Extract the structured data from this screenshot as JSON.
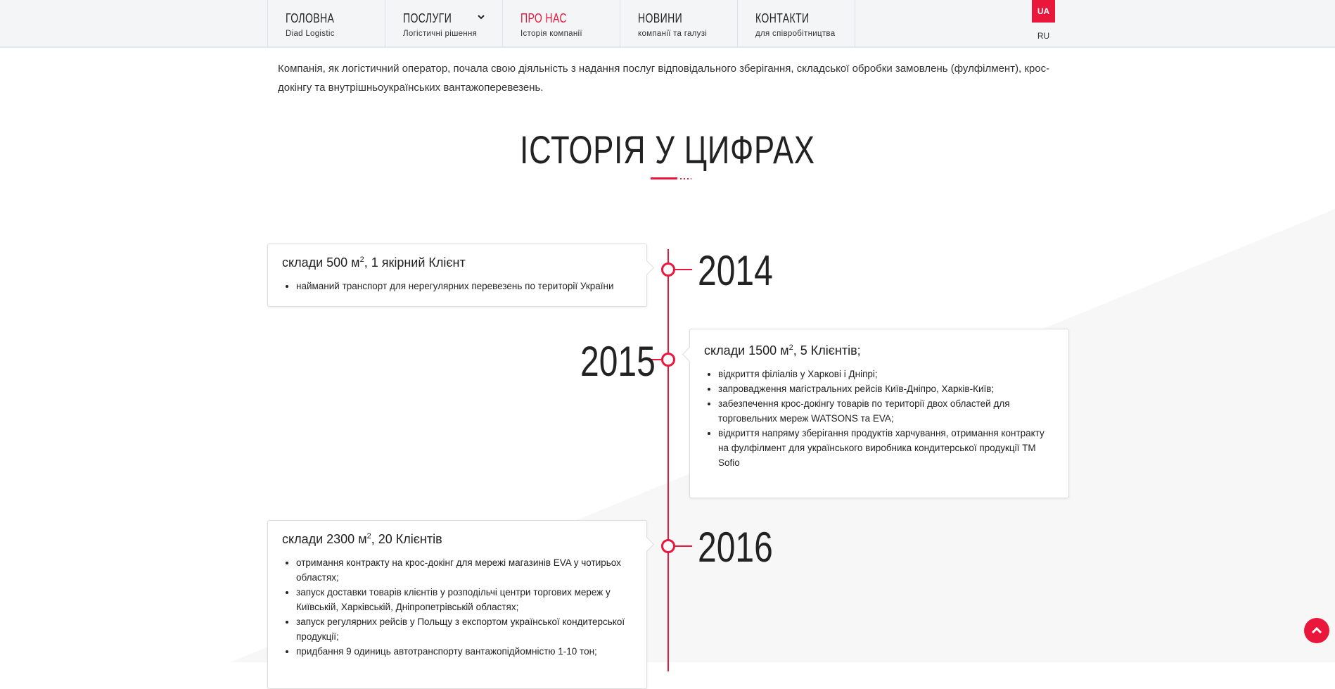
{
  "colors": {
    "accent": "#e8173b",
    "nav_bg": "#f4f5f7"
  },
  "nav": {
    "items": [
      {
        "title": "ГОЛОВНА",
        "subtitle": "Diad Logistic"
      },
      {
        "title": "ПОСЛУГИ",
        "subtitle": "Логістичні рішення",
        "has_dropdown": true
      },
      {
        "title": "ПРО НАС",
        "subtitle": "Історія компанії",
        "active": true
      },
      {
        "title": "НОВИНИ",
        "subtitle": "компанії та галузі"
      },
      {
        "title": "КОНТАКТИ",
        "subtitle": "для співробітництва"
      }
    ],
    "lang_active": "UA",
    "lang_other": "RU"
  },
  "intro": "Компанія, як логістичний оператор, почала свою діяльність з надання послуг відповідального зберігання, складської обробки замовлень (фулфілмент), крос-докінгу та внутрішньоукраїнських вантажоперевезень.",
  "section_title": "ІСТОРІЯ У ЦИФРАХ",
  "timeline": [
    {
      "year": "2014",
      "heading": "склади 500 м",
      "sup": "2",
      "heading_rest": ", 1 якірний Клієнт",
      "items": [
        "найманий транспорт для нерегулярних перевезень по території України"
      ]
    },
    {
      "year": "2015",
      "heading": "склади 1500 м",
      "sup": "2",
      "heading_rest": ", 5 Клієнтів;",
      "items": [
        "відкриття філіалів у Харкові і Дніпрі;",
        "запровадження магістральних рейсів Київ-Дніпро, Харків-Київ;",
        "забезпечення крос-докінгу товарів по території двох областей для торговельних мереж WATSONS та EVA;",
        "відкриття напряму зберігання продуктів харчування, отримання контракту на фулфілмент для українського виробника кондитерської продукції ТМ Sofio"
      ]
    },
    {
      "year": "2016",
      "heading": "склади 2300 м",
      "sup": "2",
      "heading_rest": ", 20 Клієнтів",
      "items": [
        "отримання контракту на крос-докінг для мережі магазинів EVA у чотирьох областях;",
        "запуск доставки товарів клієнтів у розподільчі центри торгових мереж у Київській, Харківській, Дніпропетрівській областях;",
        "запуск регулярних рейсів у Польщу з експортом української кондитерської продукції;",
        "придбання 9 одиниць автотранспорту вантажопідйомністю 1-10 тон;"
      ]
    }
  ],
  "icons": {
    "dropdown": "chevron-down-icon",
    "scroll_top": "chevron-up-icon"
  }
}
